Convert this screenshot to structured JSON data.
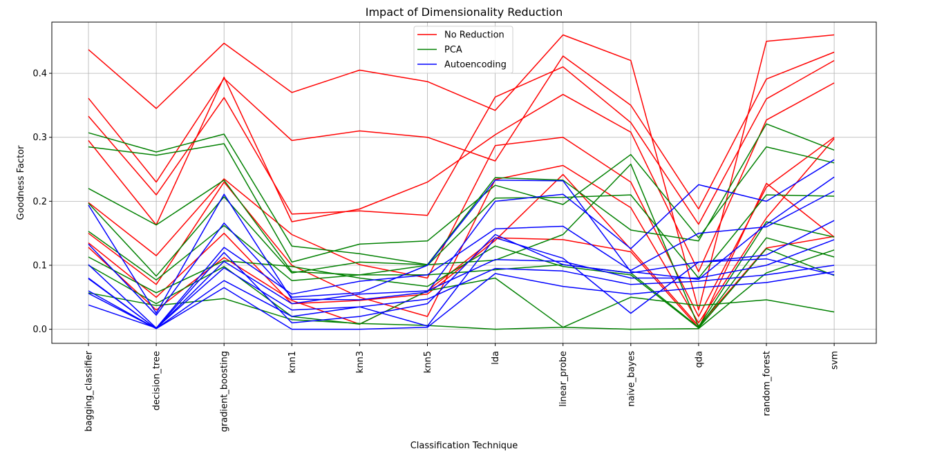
{
  "chart_data": {
    "type": "line",
    "title": "Impact of Dimensionality Reduction",
    "xlabel": "Classification Technique",
    "ylabel": "Goodness Factor",
    "categories": [
      "bagging_classifier",
      "decision_tree",
      "gradient_boosting",
      "knn1",
      "knn3",
      "knn5",
      "lda",
      "linear_probe",
      "naive_bayes",
      "qda",
      "random_forest",
      "svm"
    ],
    "yticks": [
      0.0,
      0.1,
      0.2,
      0.3,
      0.4
    ],
    "ylim": [
      -0.022,
      0.48
    ],
    "grid": true,
    "legend": {
      "placement": "top-center",
      "entries": [
        {
          "label": "No Reduction",
          "color": "#ff0000"
        },
        {
          "label": "PCA",
          "color": "#008000"
        },
        {
          "label": "Autoencoding",
          "color": "#0000ff"
        }
      ]
    },
    "groups": [
      {
        "color": "#ff0000",
        "series": [
          [
            0.437,
            0.345,
            0.447,
            0.37,
            0.405,
            0.387,
            0.342,
            0.46,
            0.42,
            0.03,
            0.45,
            0.46
          ],
          [
            0.361,
            0.23,
            0.392,
            0.295,
            0.31,
            0.3,
            0.263,
            0.427,
            0.35,
            0.188,
            0.391,
            0.433
          ],
          [
            0.333,
            0.21,
            0.362,
            0.18,
            0.185,
            0.178,
            0.363,
            0.41,
            0.323,
            0.164,
            0.36,
            0.42
          ],
          [
            0.295,
            0.163,
            0.394,
            0.168,
            0.188,
            0.23,
            0.304,
            0.367,
            0.308,
            0.09,
            0.327,
            0.385
          ],
          [
            0.198,
            0.115,
            0.235,
            0.148,
            0.101,
            0.08,
            0.287,
            0.3,
            0.23,
            0.02,
            0.222,
            0.3
          ],
          [
            0.15,
            0.07,
            0.23,
            0.1,
            0.05,
            0.02,
            0.234,
            0.256,
            0.19,
            0.01,
            0.174,
            0.298
          ],
          [
            0.135,
            0.05,
            0.15,
            0.04,
            0.045,
            0.055,
            0.139,
            0.242,
            0.125,
            0.005,
            0.127,
            0.145
          ],
          [
            0.128,
            0.03,
            0.112,
            0.045,
            0.008,
            0.06,
            0.143,
            0.14,
            0.121,
            0.002,
            0.228,
            0.144
          ]
        ]
      },
      {
        "color": "#008000",
        "series": [
          [
            0.307,
            0.277,
            0.305,
            0.13,
            0.118,
            0.101,
            0.237,
            0.233,
            0.155,
            0.138,
            0.321,
            0.28
          ],
          [
            0.285,
            0.272,
            0.29,
            0.105,
            0.133,
            0.138,
            0.225,
            0.195,
            0.273,
            0.143,
            0.285,
            0.26
          ],
          [
            0.22,
            0.163,
            0.233,
            0.09,
            0.085,
            0.1,
            0.205,
            0.206,
            0.21,
            0.08,
            0.21,
            0.208
          ],
          [
            0.197,
            0.083,
            0.207,
            0.088,
            0.105,
            0.101,
            0.108,
            0.148,
            0.258,
            0.004,
            0.168,
            0.144
          ],
          [
            0.153,
            0.077,
            0.162,
            0.076,
            0.085,
            0.085,
            0.093,
            0.101,
            0.088,
            0.003,
            0.143,
            0.113
          ],
          [
            0.113,
            0.057,
            0.107,
            0.098,
            0.08,
            0.067,
            0.13,
            0.098,
            0.085,
            0.002,
            0.126,
            0.084
          ],
          [
            0.1,
            0.04,
            0.098,
            0.02,
            0.008,
            0.06,
            0.08,
            0.003,
            0.05,
            0.037,
            0.046,
            0.027
          ],
          [
            0.057,
            0.037,
            0.048,
            0.015,
            0.009,
            0.006,
            0.0,
            0.003,
            0.0,
            0.001,
            0.088,
            0.124
          ]
        ]
      },
      {
        "color": "#0000ff",
        "series": [
          [
            0.194,
            0.025,
            0.211,
            0.047,
            0.046,
            0.058,
            0.2,
            0.211,
            0.126,
            0.226,
            0.2,
            0.265
          ],
          [
            0.133,
            0.022,
            0.166,
            0.05,
            0.057,
            0.1,
            0.233,
            0.232,
            0.09,
            0.078,
            0.164,
            0.238
          ],
          [
            0.101,
            0.002,
            0.128,
            0.055,
            0.075,
            0.085,
            0.157,
            0.161,
            0.092,
            0.15,
            0.16,
            0.216
          ],
          [
            0.08,
            0.001,
            0.12,
            0.01,
            0.02,
            0.04,
            0.148,
            0.101,
            0.088,
            0.105,
            0.116,
            0.17
          ],
          [
            0.079,
            0.001,
            0.106,
            0.04,
            0.055,
            0.06,
            0.109,
            0.106,
            0.08,
            0.08,
            0.1,
            0.14
          ],
          [
            0.06,
            0.001,
            0.076,
            0.02,
            0.035,
            0.047,
            0.095,
            0.091,
            0.07,
            0.075,
            0.085,
            0.1
          ],
          [
            0.056,
            0.001,
            0.065,
            0.0,
            0.0,
            0.003,
            0.087,
            0.067,
            0.055,
            0.065,
            0.073,
            0.09
          ],
          [
            0.038,
            0.002,
            0.096,
            0.03,
            0.035,
            0.005,
            0.143,
            0.111,
            0.025,
            0.105,
            0.11,
            0.085
          ]
        ]
      }
    ]
  }
}
